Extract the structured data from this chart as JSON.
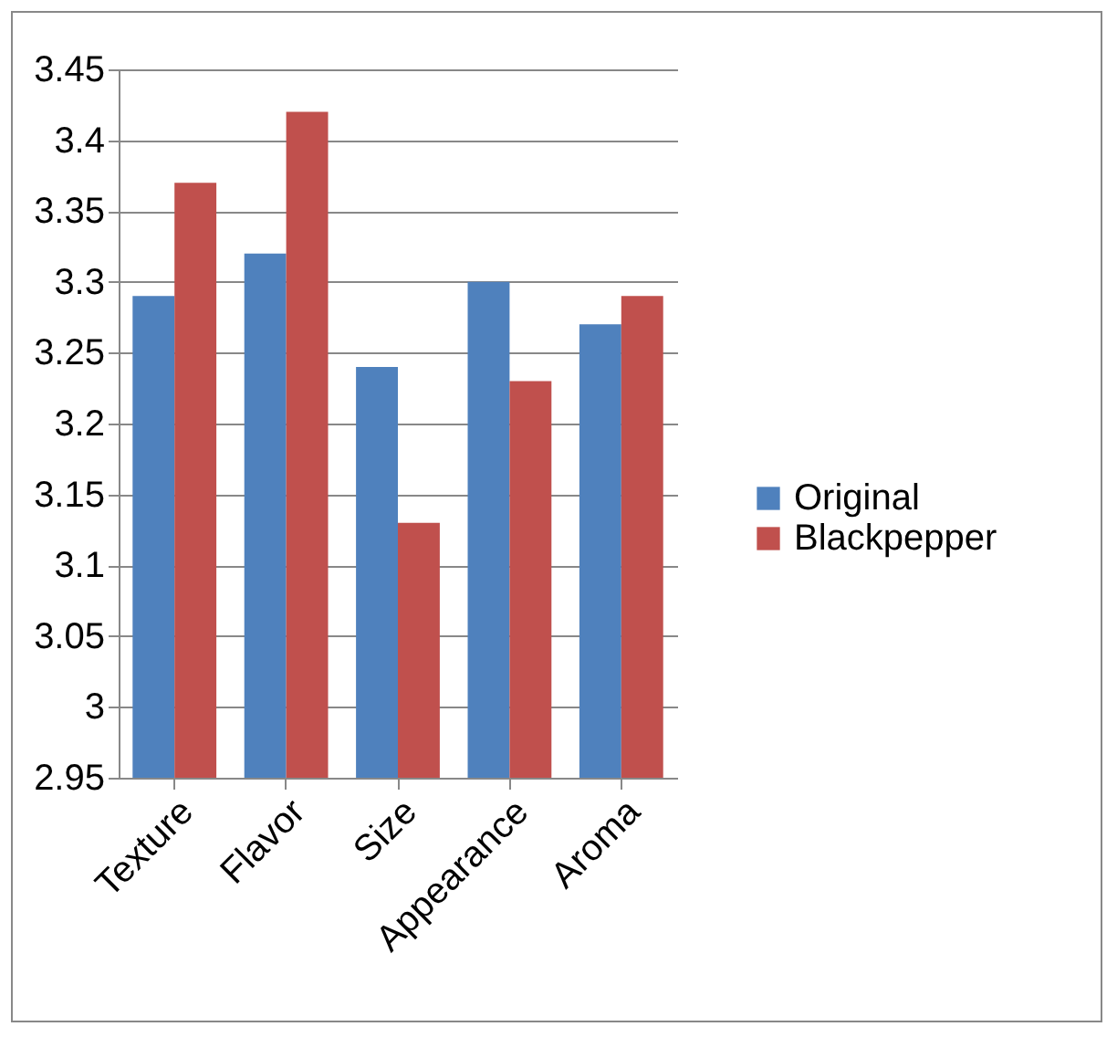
{
  "chart_data": {
    "type": "bar",
    "categories": [
      "Texture",
      "Flavor",
      "Size",
      "Appearance",
      "Aroma"
    ],
    "series": [
      {
        "name": "Original",
        "color": "#4f81bd",
        "values": [
          3.29,
          3.32,
          3.24,
          3.3,
          3.27
        ]
      },
      {
        "name": "Blackpepper",
        "color": "#c0504d",
        "values": [
          3.37,
          3.42,
          3.13,
          3.23,
          3.29
        ]
      }
    ],
    "ylim": [
      2.95,
      3.45
    ],
    "yticks": [
      2.95,
      3,
      3.05,
      3.1,
      3.15,
      3.2,
      3.25,
      3.3,
      3.35,
      3.4,
      3.45
    ],
    "grid": "y",
    "legend": "right"
  }
}
